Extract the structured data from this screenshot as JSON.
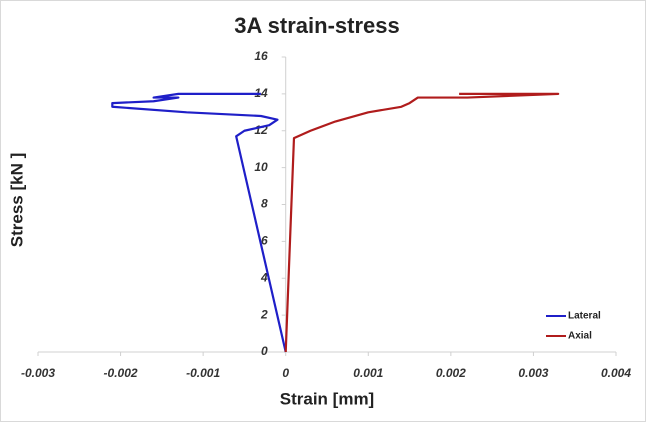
{
  "chart_data": {
    "type": "line",
    "title": "3A strain-stress",
    "x_label": "Strain [mm]",
    "y_label": "Stress [kN ]",
    "xlim": [
      -0.003,
      0.004
    ],
    "xticks": [
      -0.003,
      -0.002,
      -0.001,
      0,
      0.001,
      0.002,
      0.003,
      0.004
    ],
    "ylim": [
      0,
      16
    ],
    "yticks": [
      0,
      2,
      4,
      6,
      8,
      10,
      12,
      14,
      16
    ],
    "legend": "bottom-right",
    "series": [
      {
        "name": "Lateral",
        "color": "#1f1fc8",
        "x": [
          0,
          -0.0006,
          -0.0005,
          -0.0002,
          -0.0001,
          -0.0003,
          -0.0012,
          -0.0021,
          -0.0021,
          -0.0016,
          -0.0013,
          -0.0016,
          -0.0013,
          -0.0003
        ],
        "values": [
          0,
          11.7,
          12.0,
          12.3,
          12.6,
          12.8,
          13.0,
          13.3,
          13.5,
          13.6,
          13.8,
          13.8,
          14.0,
          14.0
        ]
      },
      {
        "name": "Axial",
        "color": "#b01c1c",
        "x": [
          0,
          0.0001,
          0.0003,
          0.0006,
          0.001,
          0.0014,
          0.0015,
          0.0016,
          0.0022,
          0.0033,
          0.0021
        ],
        "values": [
          0,
          11.6,
          12.0,
          12.5,
          13.0,
          13.3,
          13.5,
          13.8,
          13.8,
          14.0,
          14.0
        ]
      }
    ]
  }
}
